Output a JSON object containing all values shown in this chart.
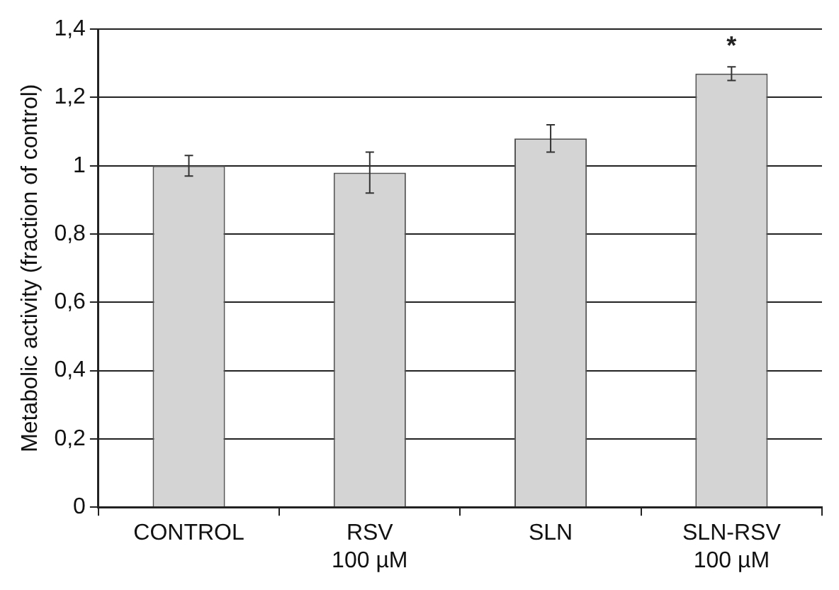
{
  "chart_data": {
    "type": "bar",
    "ylabel": "Metabolic activity (fraction of control)",
    "categories": [
      "CONTROL",
      "RSV\n100 µM",
      "SLN",
      "SLN-RSV\n100 µM"
    ],
    "values": [
      1.0,
      0.98,
      1.08,
      1.27
    ],
    "errors": [
      0.03,
      [
        0.92,
        1.04
      ],
      0.04,
      0.02
    ],
    "color": "#d4d4d4",
    "ylim": [
      0,
      1.4
    ],
    "yticks": [
      0,
      {
        "value": 0.2,
        "label": "0,2"
      },
      {
        "value": 0.4,
        "label": "0,4"
      },
      {
        "value": 0.6,
        "label": "0,6"
      },
      {
        "value": 0.8,
        "label": "0,8"
      },
      1,
      {
        "value": 1.2,
        "label": "1,2"
      },
      {
        "value": 1.4,
        "label": "1,4"
      }
    ],
    "grid": "y",
    "annotations": [
      "*"
    ]
  }
}
